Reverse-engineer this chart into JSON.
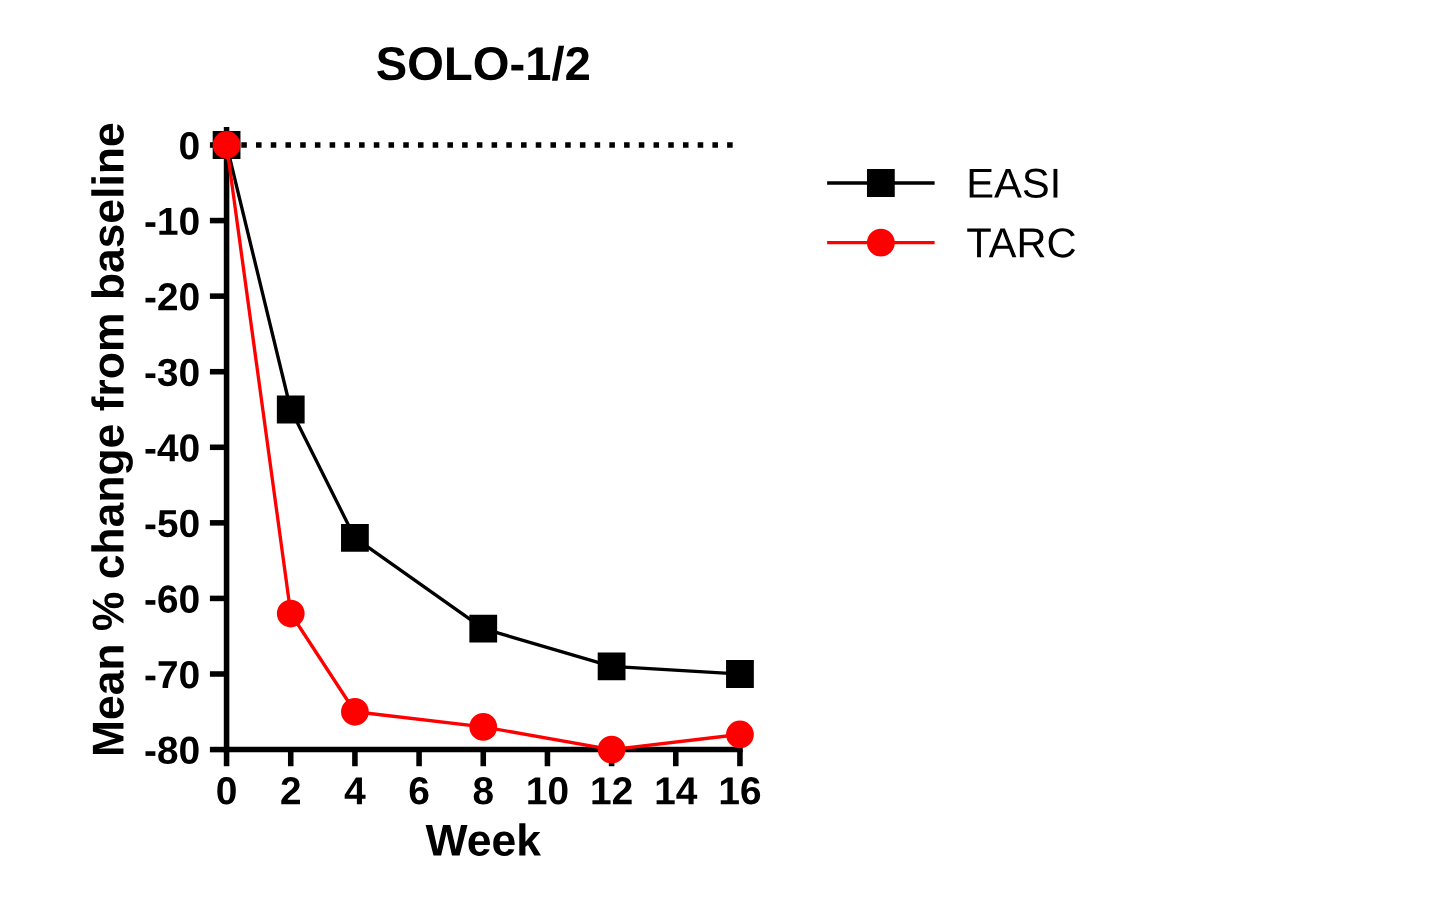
{
  "chart_data": {
    "type": "line",
    "title": "SOLO-1/2",
    "xlabel": "Week",
    "ylabel": "Mean % change from baseline",
    "x": [
      0,
      2,
      4,
      8,
      12,
      16
    ],
    "series": [
      {
        "name": "EASI",
        "color": "#000000",
        "marker": "square",
        "values": [
          0,
          -35,
          -52,
          -64,
          -69,
          -70
        ]
      },
      {
        "name": "TARC",
        "color": "#ff0000",
        "marker": "circle",
        "values": [
          0,
          -62,
          -75,
          -77,
          -80,
          -78
        ]
      }
    ],
    "xlim": [
      0,
      16
    ],
    "ylim": [
      -80,
      2
    ],
    "xticks": [
      0,
      2,
      4,
      6,
      8,
      10,
      12,
      14,
      16
    ],
    "yticks": [
      -80,
      -70,
      -60,
      -50,
      -40,
      -30,
      -20,
      -10,
      0
    ],
    "ref_lines": [
      {
        "axis": "y",
        "value": 0,
        "color": "#000000",
        "line_style": "dotted"
      }
    ],
    "grid": false,
    "legend": "top right"
  }
}
